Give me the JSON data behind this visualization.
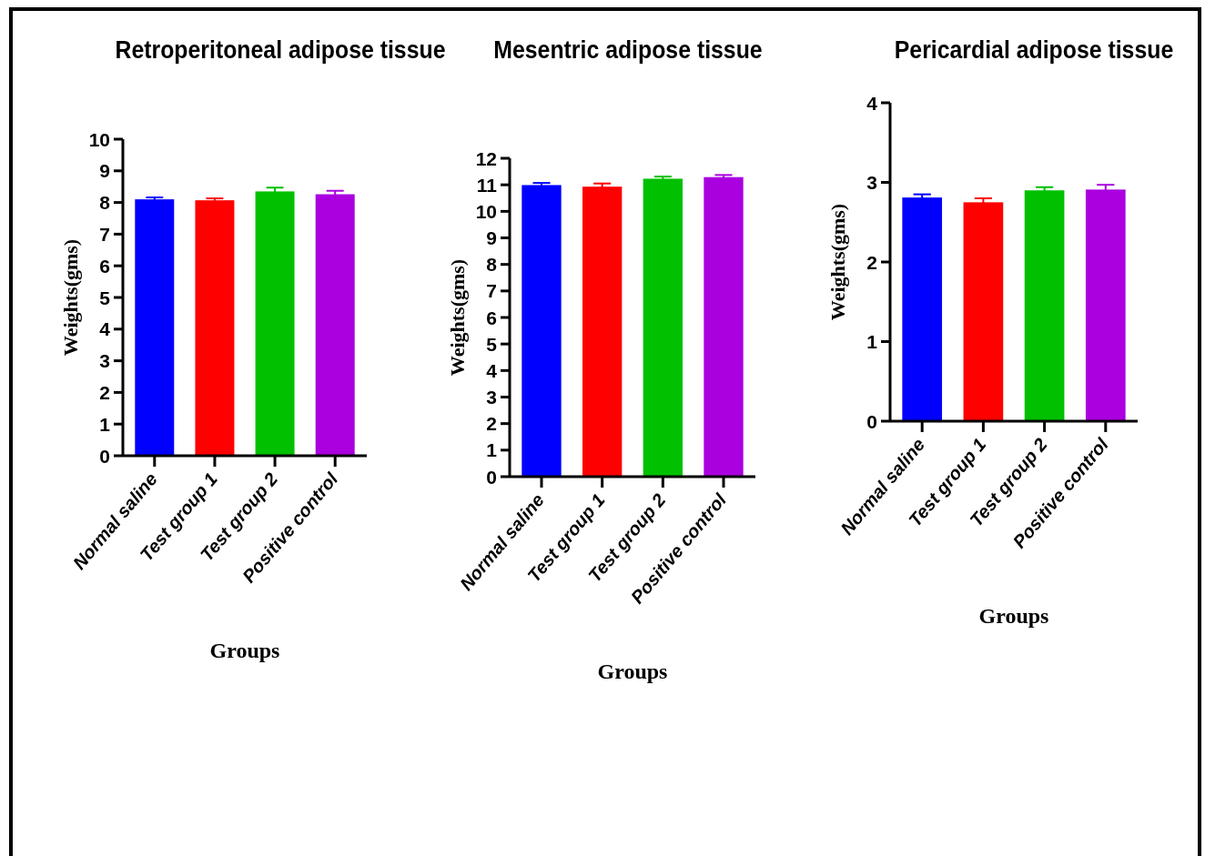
{
  "chart_data": [
    {
      "type": "bar",
      "title": "Retroperitoneal adipose tissue",
      "xlabel": "Groups",
      "ylabel": "Weights(gms)",
      "categories": [
        "Normal saline",
        "Test group 1",
        "Test group 2",
        "Positive control"
      ],
      "values": [
        8.1,
        8.07,
        8.35,
        8.26
      ],
      "errors": [
        0.06,
        0.06,
        0.12,
        0.11
      ],
      "colors": [
        "#0000ff",
        "#ff0000",
        "#00c000",
        "#aa00e0"
      ],
      "ylim": [
        0,
        10
      ],
      "yticks": [
        0,
        1,
        2,
        3,
        4,
        5,
        6,
        7,
        8,
        9,
        10
      ],
      "grid": false
    },
    {
      "type": "bar",
      "title": "Mesentric adipose tissue",
      "xlabel": "Groups",
      "ylabel": "Weights(gms)",
      "categories": [
        "Normal saline",
        "Test group 1",
        "Test group 2",
        "Positive control"
      ],
      "values": [
        10.99,
        10.93,
        11.23,
        11.29
      ],
      "errors": [
        0.08,
        0.12,
        0.08,
        0.08
      ],
      "colors": [
        "#0000ff",
        "#ff0000",
        "#00c000",
        "#aa00e0"
      ],
      "ylim": [
        0,
        12
      ],
      "yticks": [
        0,
        1,
        2,
        3,
        4,
        5,
        6,
        7,
        8,
        9,
        10,
        11,
        12
      ],
      "grid": false
    },
    {
      "type": "bar",
      "title": "Pericardial adipose tissue",
      "xlabel": "Groups",
      "ylabel": "Weights(gms)",
      "categories": [
        "Normal saline",
        "Test group 1",
        "Test group 2",
        "Positive control"
      ],
      "values": [
        2.81,
        2.75,
        2.9,
        2.91
      ],
      "errors": [
        0.04,
        0.05,
        0.04,
        0.06
      ],
      "colors": [
        "#0000ff",
        "#ff0000",
        "#00c000",
        "#aa00e0"
      ],
      "ylim": [
        0,
        4
      ],
      "yticks": [
        0,
        1,
        2,
        3,
        4
      ],
      "grid": false
    }
  ]
}
